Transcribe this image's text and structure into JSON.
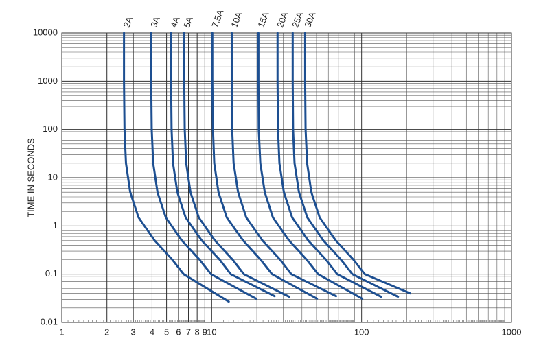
{
  "chart_data": {
    "type": "line",
    "y_label": "TIME IN SECONDS",
    "x_log": true,
    "y_log": true,
    "grid": true,
    "minor_grid": true,
    "xlim": [
      1,
      1000
    ],
    "ylim": [
      0.01,
      10000
    ],
    "xticks": [
      1,
      2,
      3,
      4,
      5,
      6,
      7,
      8,
      9,
      10,
      100,
      1000
    ],
    "yticks": [
      0.01,
      0.1,
      1,
      10,
      100,
      1000,
      10000
    ],
    "series": [
      {
        "name": "2A",
        "color": "#1d4f91",
        "x": [
          2.6,
          2.6,
          2.62,
          2.68,
          2.86,
          3.25,
          4.16,
          5.46,
          6.5,
          13
        ],
        "values": [
          10000,
          1000,
          100,
          20,
          5,
          1.5,
          0.5,
          0.2,
          0.1,
          0.027
        ]
      },
      {
        "name": "3A",
        "color": "#1d4f91",
        "x": [
          3.95,
          3.95,
          3.98,
          4.07,
          4.35,
          4.94,
          6.32,
          8.3,
          9.9,
          19.8
        ],
        "values": [
          10000,
          1000,
          100,
          20,
          5,
          1.5,
          0.5,
          0.2,
          0.1,
          0.031
        ]
      },
      {
        "name": "4A",
        "color": "#1d4f91",
        "x": [
          5.36,
          5.36,
          5.4,
          5.52,
          5.9,
          6.7,
          8.58,
          11.3,
          13.4,
          26.3
        ],
        "values": [
          10000,
          1000,
          100,
          20,
          5,
          1.5,
          0.5,
          0.2,
          0.1,
          0.035
        ]
      },
      {
        "name": "5A",
        "color": "#1d4f91",
        "x": [
          6.56,
          6.56,
          6.61,
          6.76,
          7.22,
          8.2,
          10.5,
          13.8,
          16.4,
          32.9
        ],
        "values": [
          10000,
          1000,
          100,
          20,
          5,
          1.5,
          0.5,
          0.2,
          0.1,
          0.034
        ]
      },
      {
        "name": "7.5A",
        "color": "#1d4f91",
        "x": [
          10.1,
          10.1,
          10.2,
          10.4,
          11.1,
          12.6,
          16.2,
          21.2,
          25.3,
          50.4
        ],
        "values": [
          10000,
          1000,
          100,
          20,
          5,
          1.5,
          0.5,
          0.2,
          0.1,
          0.031
        ]
      },
      {
        "name": "10A",
        "color": "#1d4f91",
        "x": [
          13.6,
          13.6,
          13.7,
          14,
          15,
          17,
          21.8,
          28.6,
          34,
          67.6
        ],
        "values": [
          10000,
          1000,
          100,
          20,
          5,
          1.5,
          0.5,
          0.2,
          0.1,
          0.035
        ]
      },
      {
        "name": "15A",
        "color": "#1d4f91",
        "x": [
          20.5,
          20.5,
          20.6,
          21.1,
          22.6,
          25.6,
          32.8,
          43,
          51.3,
          101
        ],
        "values": [
          10000,
          1000,
          100,
          20,
          5,
          1.5,
          0.5,
          0.2,
          0.1,
          0.031
        ]
      },
      {
        "name": "20A",
        "color": "#1d4f91",
        "x": [
          27.5,
          27.5,
          27.7,
          28.3,
          30.3,
          34.4,
          44,
          57.8,
          68.8,
          135
        ],
        "values": [
          10000,
          1000,
          100,
          20,
          5,
          1.5,
          0.5,
          0.2,
          0.1,
          0.034
        ]
      },
      {
        "name": "25A",
        "color": "#1d4f91",
        "x": [
          34.7,
          34.7,
          34.9,
          35.7,
          38.2,
          43.4,
          55.5,
          72.9,
          86.8,
          175
        ],
        "values": [
          10000,
          1000,
          100,
          20,
          5,
          1.5,
          0.5,
          0.2,
          0.1,
          0.034
        ]
      },
      {
        "name": "30A",
        "color": "#1d4f91",
        "x": [
          42,
          42,
          42.3,
          43.3,
          46.2,
          52.5,
          67.2,
          88.2,
          105,
          211
        ],
        "values": [
          10000,
          1000,
          100,
          20,
          5,
          1.5,
          0.5,
          0.2,
          0.1,
          0.04
        ]
      }
    ]
  }
}
